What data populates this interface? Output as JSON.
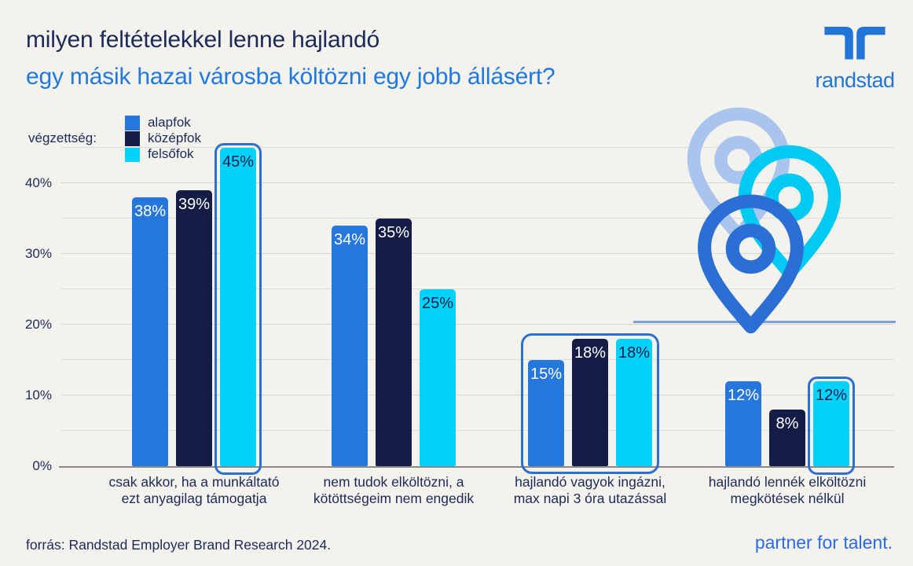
{
  "title": {
    "line1": "milyen feltételekkel lenne hajlandó",
    "line2": "egy másik hazai városba költözni egy jobb állásért?"
  },
  "logo": {
    "wordmark": "randstad"
  },
  "legend": {
    "label": "végzettség:",
    "items": [
      {
        "label": "alapfok",
        "color": "#2577dd"
      },
      {
        "label": "középfok",
        "color": "#141d45"
      },
      {
        "label": "felsőfok",
        "color": "#00d2fa"
      }
    ]
  },
  "chart_data": {
    "type": "bar",
    "title": "milyen feltételekkel lenne hajlandó egy másik hazai városba költözni egy jobb állásért?",
    "categories": [
      "csak akkor, ha a munkáltató\nezt anyagilag támogatja",
      "nem tudok elköltözni, a\nkötöttségeim nem engedik",
      "hajlandó vagyok ingázni,\nmax napi 3 óra utazással",
      "hajlandó lennék elköltözni\nmegkötések nélkül"
    ],
    "series": [
      {
        "name": "alapfok",
        "color": "#2577dd",
        "label_color": "#ffffff",
        "values": [
          38,
          34,
          15,
          12
        ]
      },
      {
        "name": "középfok",
        "color": "#141d45",
        "label_color": "#ffffff",
        "values": [
          39,
          35,
          18,
          8
        ]
      },
      {
        "name": "felsőfok",
        "color": "#00d2fa",
        "label_color": "#15204a",
        "values": [
          45,
          25,
          18,
          12
        ]
      }
    ],
    "value_suffix": "%",
    "ylim": [
      0,
      45
    ],
    "yticks": [
      {
        "pct": 0,
        "label": "0%"
      },
      {
        "pct": 10,
        "label": "10%"
      },
      {
        "pct": 20,
        "label": "20%"
      },
      {
        "pct": 30,
        "label": "30%"
      },
      {
        "pct": 40,
        "label": "40%"
      }
    ],
    "grid": "horizontal, every 5%",
    "legend_position": "top",
    "highlights": [
      {
        "type": "bar",
        "group": 0,
        "bar": 2
      },
      {
        "type": "group",
        "group": 2
      },
      {
        "type": "bar",
        "group": 3,
        "bar": 2
      }
    ]
  },
  "footer": {
    "source": "forrás: Randstad Employer Brand Research 2024.",
    "tagline": "partner for talent."
  },
  "colors": {
    "background": "#f4f2ec",
    "navy_text": "#1b2a5a",
    "title_blue": "#1e79e0",
    "bar_blue": "#2577dd",
    "bar_navy": "#141d45",
    "bar_cyan": "#00d2fa",
    "highlight_border": "#2e6fd0",
    "gridline": "#dfdcd4",
    "axis_line": "#8b8981",
    "accent_line": "#7ba2dc",
    "pin_light": "#a9c4ee",
    "pin_cyan": "#00c9f2",
    "pin_blue": "#2b6fd4",
    "brand_blue": "#2175d9",
    "tagline_blue": "#2a6ae4"
  }
}
